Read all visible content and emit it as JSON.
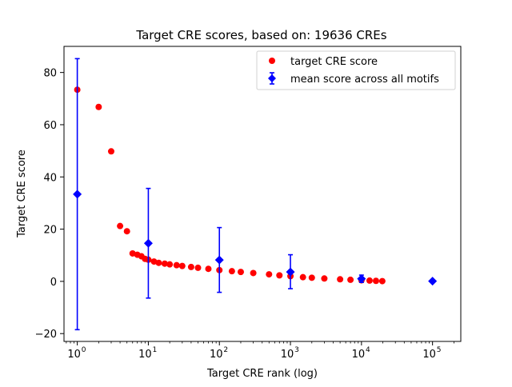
{
  "chart_data": {
    "type": "scatter",
    "title": "Target CRE scores, based on: 19636 CREs",
    "xlabel": "Target CRE rank (log)",
    "ylabel": "Target CRE score",
    "xscale": "log",
    "xlim": [
      0.65,
      250000
    ],
    "ylim": [
      -23,
      90
    ],
    "grid": false,
    "legend_position": "top-right",
    "colors": {
      "target": "#ff0000",
      "mean": "#0000ff",
      "axis": "#000000",
      "legend_border": "#cccccc"
    },
    "x_ticks": [
      {
        "value": 1,
        "base": "10",
        "exp": "0"
      },
      {
        "value": 10,
        "base": "10",
        "exp": "1"
      },
      {
        "value": 100,
        "base": "10",
        "exp": "2"
      },
      {
        "value": 1000,
        "base": "10",
        "exp": "3"
      },
      {
        "value": 10000,
        "base": "10",
        "exp": "4"
      },
      {
        "value": 100000,
        "base": "10",
        "exp": "5"
      }
    ],
    "y_ticks": [
      {
        "value": -20,
        "label": "−20"
      },
      {
        "value": 0,
        "label": "0"
      },
      {
        "value": 20,
        "label": "20"
      },
      {
        "value": 40,
        "label": "40"
      },
      {
        "value": 60,
        "label": "60"
      },
      {
        "value": 80,
        "label": "80"
      }
    ],
    "series": [
      {
        "name": "target CRE score",
        "kind": "points",
        "color": "#ff0000",
        "marker": "circle",
        "points": [
          [
            1,
            73.4
          ],
          [
            2,
            66.8
          ],
          [
            3,
            49.8
          ],
          [
            4,
            21.2
          ],
          [
            5,
            19.2
          ],
          [
            6,
            10.7
          ],
          [
            7,
            10.2
          ],
          [
            8,
            9.6
          ],
          [
            9,
            8.6
          ],
          [
            10,
            8.3
          ],
          [
            12,
            7.6
          ],
          [
            14,
            7.1
          ],
          [
            17,
            6.8
          ],
          [
            20,
            6.5
          ],
          [
            25,
            6.2
          ],
          [
            30,
            5.9
          ],
          [
            40,
            5.5
          ],
          [
            50,
            5.2
          ],
          [
            70,
            4.8
          ],
          [
            100,
            4.3
          ],
          [
            150,
            3.9
          ],
          [
            200,
            3.6
          ],
          [
            300,
            3.2
          ],
          [
            500,
            2.7
          ],
          [
            700,
            2.3
          ],
          [
            1000,
            2.0
          ],
          [
            1500,
            1.6
          ],
          [
            2000,
            1.4
          ],
          [
            3000,
            1.1
          ],
          [
            5000,
            0.8
          ],
          [
            7000,
            0.6
          ],
          [
            10000,
            0.4
          ],
          [
            13000,
            0.3
          ],
          [
            16000,
            0.2
          ],
          [
            19636,
            0.1
          ]
        ]
      },
      {
        "name": "mean score across all motifs",
        "kind": "errorbar",
        "color": "#0000ff",
        "marker": "diamond",
        "points": [
          {
            "x": 1,
            "y": 33.4,
            "lo": -18.5,
            "hi": 85.3
          },
          {
            "x": 10,
            "y": 14.6,
            "lo": -6.4,
            "hi": 35.6
          },
          {
            "x": 100,
            "y": 8.2,
            "lo": -4.2,
            "hi": 20.6
          },
          {
            "x": 1000,
            "y": 3.6,
            "lo": -2.8,
            "hi": 10.2
          },
          {
            "x": 10000,
            "y": 1.0,
            "lo": -0.4,
            "hi": 2.4
          },
          {
            "x": 100000,
            "y": 0.1,
            "lo": 0.1,
            "hi": 0.1
          }
        ]
      }
    ]
  }
}
